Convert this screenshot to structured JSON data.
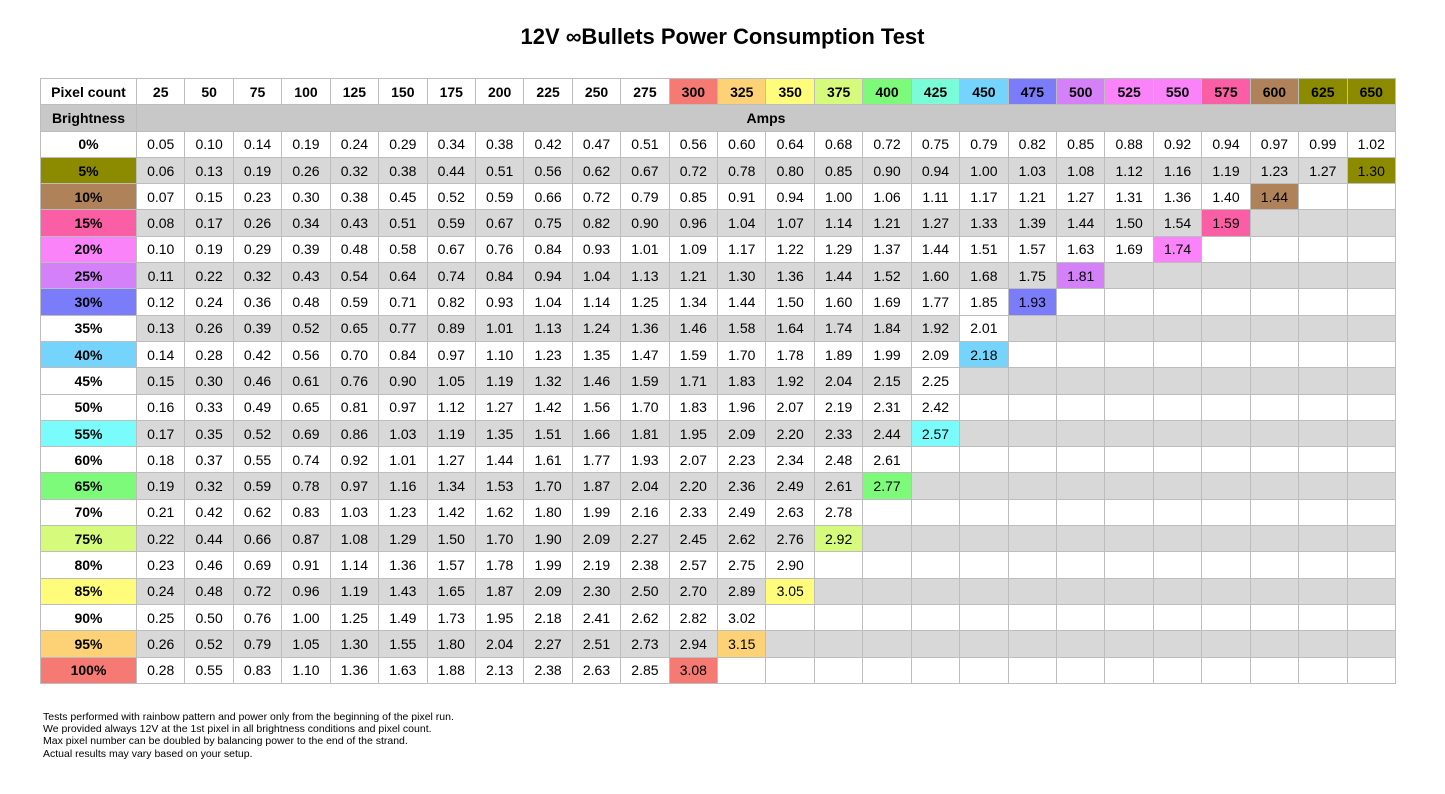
{
  "title": "12V ∞Bullets Power Consumption Test",
  "table": {
    "corner_label": "Pixel count",
    "brightness_label": "Brightness",
    "units_label": "Amps",
    "pixel_counts": [
      "25",
      "50",
      "75",
      "100",
      "125",
      "150",
      "175",
      "200",
      "225",
      "250",
      "275",
      "300",
      "325",
      "350",
      "375",
      "400",
      "425",
      "450",
      "475",
      "500",
      "525",
      "550",
      "575",
      "600",
      "625",
      "650"
    ],
    "column_colors": {
      "300": "#f67a74",
      "325": "#fdd276",
      "350": "#fffb7b",
      "375": "#d6fb7c",
      "400": "#7efa7b",
      "425": "#7afcd8",
      "450": "#74d4fc",
      "475": "#7a7cf9",
      "500": "#d481f9",
      "525": "#fa83fa",
      "550": "#fa83fa",
      "575": "#fa5fa5",
      "600": "#b0825a",
      "625": "#8c8b00",
      "650": "#8c8b00"
    },
    "rows": [
      {
        "label": "0%",
        "color": "#ffffff",
        "values": [
          "0.05",
          "0.10",
          "0.14",
          "0.19",
          "0.24",
          "0.29",
          "0.34",
          "0.38",
          "0.42",
          "0.47",
          "0.51",
          "0.56",
          "0.60",
          "0.64",
          "0.68",
          "0.72",
          "0.75",
          "0.79",
          "0.82",
          "0.85",
          "0.88",
          "0.92",
          "0.94",
          "0.97",
          "0.99",
          "1.02"
        ]
      },
      {
        "label": "5%",
        "color": "#8c8b00",
        "values": [
          "0.06",
          "0.13",
          "0.19",
          "0.26",
          "0.32",
          "0.38",
          "0.44",
          "0.51",
          "0.56",
          "0.62",
          "0.67",
          "0.72",
          "0.78",
          "0.80",
          "0.85",
          "0.90",
          "0.94",
          "1.00",
          "1.03",
          "1.08",
          "1.12",
          "1.16",
          "1.19",
          "1.23",
          "1.27",
          "1.30"
        ]
      },
      {
        "label": "10%",
        "color": "#b0825a",
        "values": [
          "0.07",
          "0.15",
          "0.23",
          "0.30",
          "0.38",
          "0.45",
          "0.52",
          "0.59",
          "0.66",
          "0.72",
          "0.79",
          "0.85",
          "0.91",
          "0.94",
          "1.00",
          "1.06",
          "1.11",
          "1.17",
          "1.21",
          "1.27",
          "1.31",
          "1.36",
          "1.40",
          "1.44",
          "",
          ""
        ]
      },
      {
        "label": "15%",
        "color": "#fa5fa5",
        "values": [
          "0.08",
          "0.17",
          "0.26",
          "0.34",
          "0.43",
          "0.51",
          "0.59",
          "0.67",
          "0.75",
          "0.82",
          "0.90",
          "0.96",
          "1.04",
          "1.07",
          "1.14",
          "1.21",
          "1.27",
          "1.33",
          "1.39",
          "1.44",
          "1.50",
          "1.54",
          "1.59",
          "",
          "",
          ""
        ]
      },
      {
        "label": "20%",
        "color": "#fa83fa",
        "values": [
          "0.10",
          "0.19",
          "0.29",
          "0.39",
          "0.48",
          "0.58",
          "0.67",
          "0.76",
          "0.84",
          "0.93",
          "1.01",
          "1.09",
          "1.17",
          "1.22",
          "1.29",
          "1.37",
          "1.44",
          "1.51",
          "1.57",
          "1.63",
          "1.69",
          "1.74",
          "",
          "",
          "",
          ""
        ]
      },
      {
        "label": "25%",
        "color": "#d481f9",
        "values": [
          "0.11",
          "0.22",
          "0.32",
          "0.43",
          "0.54",
          "0.64",
          "0.74",
          "0.84",
          "0.94",
          "1.04",
          "1.13",
          "1.21",
          "1.30",
          "1.36",
          "1.44",
          "1.52",
          "1.60",
          "1.68",
          "1.75",
          "1.81",
          "",
          "",
          "",
          "",
          "",
          ""
        ]
      },
      {
        "label": "30%",
        "color": "#7a7cf9",
        "values": [
          "0.12",
          "0.24",
          "0.36",
          "0.48",
          "0.59",
          "0.71",
          "0.82",
          "0.93",
          "1.04",
          "1.14",
          "1.25",
          "1.34",
          "1.44",
          "1.50",
          "1.60",
          "1.69",
          "1.77",
          "1.85",
          "1.93",
          "",
          "",
          "",
          "",
          "",
          "",
          ""
        ]
      },
      {
        "label": "35%",
        "color": "#ffffff",
        "values": [
          "0.13",
          "0.26",
          "0.39",
          "0.52",
          "0.65",
          "0.77",
          "0.89",
          "1.01",
          "1.13",
          "1.24",
          "1.36",
          "1.46",
          "1.58",
          "1.64",
          "1.74",
          "1.84",
          "1.92",
          "2.01",
          "",
          "",
          "",
          "",
          "",
          "",
          "",
          ""
        ]
      },
      {
        "label": "40%",
        "color": "#74d4fc",
        "values": [
          "0.14",
          "0.28",
          "0.42",
          "0.56",
          "0.70",
          "0.84",
          "0.97",
          "1.10",
          "1.23",
          "1.35",
          "1.47",
          "1.59",
          "1.70",
          "1.78",
          "1.89",
          "1.99",
          "2.09",
          "2.18",
          "",
          "",
          "",
          "",
          "",
          "",
          "",
          ""
        ]
      },
      {
        "label": "45%",
        "color": "#ffffff",
        "values": [
          "0.15",
          "0.30",
          "0.46",
          "0.61",
          "0.76",
          "0.90",
          "1.05",
          "1.19",
          "1.32",
          "1.46",
          "1.59",
          "1.71",
          "1.83",
          "1.92",
          "2.04",
          "2.15",
          "2.25",
          "",
          "",
          "",
          "",
          "",
          "",
          "",
          "",
          ""
        ]
      },
      {
        "label": "50%",
        "color": "#ffffff",
        "values": [
          "0.16",
          "0.33",
          "0.49",
          "0.65",
          "0.81",
          "0.97",
          "1.12",
          "1.27",
          "1.42",
          "1.56",
          "1.70",
          "1.83",
          "1.96",
          "2.07",
          "2.19",
          "2.31",
          "2.42",
          "",
          "",
          "",
          "",
          "",
          "",
          "",
          "",
          ""
        ]
      },
      {
        "label": "55%",
        "color": "#7afcfc",
        "values": [
          "0.17",
          "0.35",
          "0.52",
          "0.69",
          "0.86",
          "1.03",
          "1.19",
          "1.35",
          "1.51",
          "1.66",
          "1.81",
          "1.95",
          "2.09",
          "2.20",
          "2.33",
          "2.44",
          "2.57",
          "",
          "",
          "",
          "",
          "",
          "",
          "",
          "",
          ""
        ]
      },
      {
        "label": "60%",
        "color": "#ffffff",
        "values": [
          "0.18",
          "0.37",
          "0.55",
          "0.74",
          "0.92",
          "1.01",
          "1.27",
          "1.44",
          "1.61",
          "1.77",
          "1.93",
          "2.07",
          "2.23",
          "2.34",
          "2.48",
          "2.61",
          "",
          "",
          "",
          "",
          "",
          "",
          "",
          "",
          "",
          ""
        ]
      },
      {
        "label": "65%",
        "color": "#7efa7b",
        "values": [
          "0.19",
          "0.32",
          "0.59",
          "0.78",
          "0.97",
          "1.16",
          "1.34",
          "1.53",
          "1.70",
          "1.87",
          "2.04",
          "2.20",
          "2.36",
          "2.49",
          "2.61",
          "2.77",
          "",
          "",
          "",
          "",
          "",
          "",
          "",
          "",
          "",
          ""
        ]
      },
      {
        "label": "70%",
        "color": "#ffffff",
        "values": [
          "0.21",
          "0.42",
          "0.62",
          "0.83",
          "1.03",
          "1.23",
          "1.42",
          "1.62",
          "1.80",
          "1.99",
          "2.16",
          "2.33",
          "2.49",
          "2.63",
          "2.78",
          "",
          "",
          "",
          "",
          "",
          "",
          "",
          "",
          "",
          "",
          ""
        ]
      },
      {
        "label": "75%",
        "color": "#d6fb7c",
        "values": [
          "0.22",
          "0.44",
          "0.66",
          "0.87",
          "1.08",
          "1.29",
          "1.50",
          "1.70",
          "1.90",
          "2.09",
          "2.27",
          "2.45",
          "2.62",
          "2.76",
          "2.92",
          "",
          "",
          "",
          "",
          "",
          "",
          "",
          "",
          "",
          "",
          ""
        ]
      },
      {
        "label": "80%",
        "color": "#ffffff",
        "values": [
          "0.23",
          "0.46",
          "0.69",
          "0.91",
          "1.14",
          "1.36",
          "1.57",
          "1.78",
          "1.99",
          "2.19",
          "2.38",
          "2.57",
          "2.75",
          "2.90",
          "",
          "",
          "",
          "",
          "",
          "",
          "",
          "",
          "",
          "",
          "",
          ""
        ]
      },
      {
        "label": "85%",
        "color": "#fffb7b",
        "values": [
          "0.24",
          "0.48",
          "0.72",
          "0.96",
          "1.19",
          "1.43",
          "1.65",
          "1.87",
          "2.09",
          "2.30",
          "2.50",
          "2.70",
          "2.89",
          "3.05",
          "",
          "",
          "",
          "",
          "",
          "",
          "",
          "",
          "",
          "",
          "",
          ""
        ]
      },
      {
        "label": "90%",
        "color": "#ffffff",
        "values": [
          "0.25",
          "0.50",
          "0.76",
          "1.00",
          "1.25",
          "1.49",
          "1.73",
          "1.95",
          "2.18",
          "2.41",
          "2.62",
          "2.82",
          "3.02",
          "",
          "",
          "",
          "",
          "",
          "",
          "",
          "",
          "",
          "",
          "",
          "",
          ""
        ]
      },
      {
        "label": "95%",
        "color": "#fdd276",
        "values": [
          "0.26",
          "0.52",
          "0.79",
          "1.05",
          "1.30",
          "1.55",
          "1.80",
          "2.04",
          "2.27",
          "2.51",
          "2.73",
          "2.94",
          "3.15",
          "",
          "",
          "",
          "",
          "",
          "",
          "",
          "",
          "",
          "",
          "",
          "",
          ""
        ]
      },
      {
        "label": "100%",
        "color": "#f67a74",
        "values": [
          "0.28",
          "0.55",
          "0.83",
          "1.10",
          "1.36",
          "1.63",
          "1.88",
          "2.13",
          "2.38",
          "2.63",
          "2.85",
          "3.08",
          "",
          "",
          "",
          "",
          "",
          "",
          "",
          "",
          "",
          "",
          "",
          "",
          "",
          ""
        ]
      }
    ]
  },
  "chart_data": {
    "type": "table",
    "title": "12V ∞Bullets Power Consumption Test",
    "xlabel": "Pixel count",
    "ylabel": "Brightness",
    "value_unit": "Amps",
    "columns": [
      25,
      50,
      75,
      100,
      125,
      150,
      175,
      200,
      225,
      250,
      275,
      300,
      325,
      350,
      375,
      400,
      425,
      450,
      475,
      500,
      525,
      550,
      575,
      600,
      625,
      650
    ],
    "rows": [
      "0%",
      "5%",
      "10%",
      "15%",
      "20%",
      "25%",
      "30%",
      "35%",
      "40%",
      "45%",
      "50%",
      "55%",
      "60%",
      "65%",
      "70%",
      "75%",
      "80%",
      "85%",
      "90%",
      "95%",
      "100%"
    ]
  },
  "notes": [
    "Tests performed with rainbow pattern and power only from the beginning of the pixel run.",
    "We provided always 12V at the 1st pixel in all brightness conditions and pixel count.",
    "Max pixel number can be doubled by balancing power to the end of the strand.",
    "Actual results may vary based on your setup."
  ],
  "colors": {
    "header_gray": "#c8c8c8",
    "stripe_gray": "#d8d8d8",
    "white": "#ffffff"
  }
}
